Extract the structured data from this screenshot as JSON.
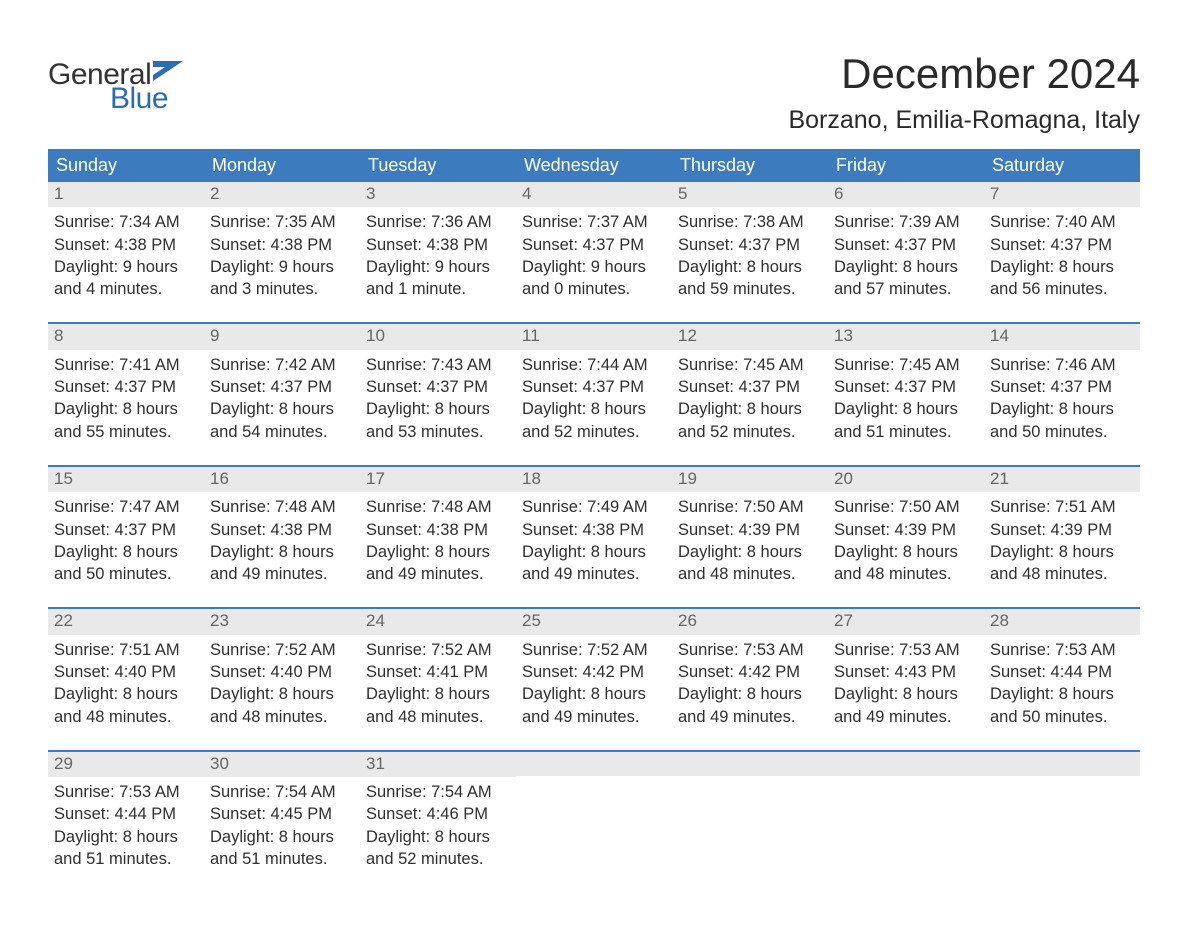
{
  "colors": {
    "header_bg": "#3d7bbf",
    "header_text": "#ffffff",
    "daynum_bg": "#e9e9e9",
    "daynum_text": "#666666",
    "body_text": "#2f2f2f",
    "logo_gray": "#333333",
    "logo_blue": "#2a6db5",
    "page_bg": "#ffffff",
    "week_sep": "#3d7bbf"
  },
  "logo": {
    "part1": "General",
    "part2": "Blue"
  },
  "title": "December 2024",
  "location": "Borzano, Emilia-Romagna, Italy",
  "day_headers": [
    "Sunday",
    "Monday",
    "Tuesday",
    "Wednesday",
    "Thursday",
    "Friday",
    "Saturday"
  ],
  "weeks": [
    [
      {
        "n": "1",
        "sunrise": "Sunrise: 7:34 AM",
        "sunset": "Sunset: 4:38 PM",
        "d1": "Daylight: 9 hours",
        "d2": "and 4 minutes."
      },
      {
        "n": "2",
        "sunrise": "Sunrise: 7:35 AM",
        "sunset": "Sunset: 4:38 PM",
        "d1": "Daylight: 9 hours",
        "d2": "and 3 minutes."
      },
      {
        "n": "3",
        "sunrise": "Sunrise: 7:36 AM",
        "sunset": "Sunset: 4:38 PM",
        "d1": "Daylight: 9 hours",
        "d2": "and 1 minute."
      },
      {
        "n": "4",
        "sunrise": "Sunrise: 7:37 AM",
        "sunset": "Sunset: 4:37 PM",
        "d1": "Daylight: 9 hours",
        "d2": "and 0 minutes."
      },
      {
        "n": "5",
        "sunrise": "Sunrise: 7:38 AM",
        "sunset": "Sunset: 4:37 PM",
        "d1": "Daylight: 8 hours",
        "d2": "and 59 minutes."
      },
      {
        "n": "6",
        "sunrise": "Sunrise: 7:39 AM",
        "sunset": "Sunset: 4:37 PM",
        "d1": "Daylight: 8 hours",
        "d2": "and 57 minutes."
      },
      {
        "n": "7",
        "sunrise": "Sunrise: 7:40 AM",
        "sunset": "Sunset: 4:37 PM",
        "d1": "Daylight: 8 hours",
        "d2": "and 56 minutes."
      }
    ],
    [
      {
        "n": "8",
        "sunrise": "Sunrise: 7:41 AM",
        "sunset": "Sunset: 4:37 PM",
        "d1": "Daylight: 8 hours",
        "d2": "and 55 minutes."
      },
      {
        "n": "9",
        "sunrise": "Sunrise: 7:42 AM",
        "sunset": "Sunset: 4:37 PM",
        "d1": "Daylight: 8 hours",
        "d2": "and 54 minutes."
      },
      {
        "n": "10",
        "sunrise": "Sunrise: 7:43 AM",
        "sunset": "Sunset: 4:37 PM",
        "d1": "Daylight: 8 hours",
        "d2": "and 53 minutes."
      },
      {
        "n": "11",
        "sunrise": "Sunrise: 7:44 AM",
        "sunset": "Sunset: 4:37 PM",
        "d1": "Daylight: 8 hours",
        "d2": "and 52 minutes."
      },
      {
        "n": "12",
        "sunrise": "Sunrise: 7:45 AM",
        "sunset": "Sunset: 4:37 PM",
        "d1": "Daylight: 8 hours",
        "d2": "and 52 minutes."
      },
      {
        "n": "13",
        "sunrise": "Sunrise: 7:45 AM",
        "sunset": "Sunset: 4:37 PM",
        "d1": "Daylight: 8 hours",
        "d2": "and 51 minutes."
      },
      {
        "n": "14",
        "sunrise": "Sunrise: 7:46 AM",
        "sunset": "Sunset: 4:37 PM",
        "d1": "Daylight: 8 hours",
        "d2": "and 50 minutes."
      }
    ],
    [
      {
        "n": "15",
        "sunrise": "Sunrise: 7:47 AM",
        "sunset": "Sunset: 4:37 PM",
        "d1": "Daylight: 8 hours",
        "d2": "and 50 minutes."
      },
      {
        "n": "16",
        "sunrise": "Sunrise: 7:48 AM",
        "sunset": "Sunset: 4:38 PM",
        "d1": "Daylight: 8 hours",
        "d2": "and 49 minutes."
      },
      {
        "n": "17",
        "sunrise": "Sunrise: 7:48 AM",
        "sunset": "Sunset: 4:38 PM",
        "d1": "Daylight: 8 hours",
        "d2": "and 49 minutes."
      },
      {
        "n": "18",
        "sunrise": "Sunrise: 7:49 AM",
        "sunset": "Sunset: 4:38 PM",
        "d1": "Daylight: 8 hours",
        "d2": "and 49 minutes."
      },
      {
        "n": "19",
        "sunrise": "Sunrise: 7:50 AM",
        "sunset": "Sunset: 4:39 PM",
        "d1": "Daylight: 8 hours",
        "d2": "and 48 minutes."
      },
      {
        "n": "20",
        "sunrise": "Sunrise: 7:50 AM",
        "sunset": "Sunset: 4:39 PM",
        "d1": "Daylight: 8 hours",
        "d2": "and 48 minutes."
      },
      {
        "n": "21",
        "sunrise": "Sunrise: 7:51 AM",
        "sunset": "Sunset: 4:39 PM",
        "d1": "Daylight: 8 hours",
        "d2": "and 48 minutes."
      }
    ],
    [
      {
        "n": "22",
        "sunrise": "Sunrise: 7:51 AM",
        "sunset": "Sunset: 4:40 PM",
        "d1": "Daylight: 8 hours",
        "d2": "and 48 minutes."
      },
      {
        "n": "23",
        "sunrise": "Sunrise: 7:52 AM",
        "sunset": "Sunset: 4:40 PM",
        "d1": "Daylight: 8 hours",
        "d2": "and 48 minutes."
      },
      {
        "n": "24",
        "sunrise": "Sunrise: 7:52 AM",
        "sunset": "Sunset: 4:41 PM",
        "d1": "Daylight: 8 hours",
        "d2": "and 48 minutes."
      },
      {
        "n": "25",
        "sunrise": "Sunrise: 7:52 AM",
        "sunset": "Sunset: 4:42 PM",
        "d1": "Daylight: 8 hours",
        "d2": "and 49 minutes."
      },
      {
        "n": "26",
        "sunrise": "Sunrise: 7:53 AM",
        "sunset": "Sunset: 4:42 PM",
        "d1": "Daylight: 8 hours",
        "d2": "and 49 minutes."
      },
      {
        "n": "27",
        "sunrise": "Sunrise: 7:53 AM",
        "sunset": "Sunset: 4:43 PM",
        "d1": "Daylight: 8 hours",
        "d2": "and 49 minutes."
      },
      {
        "n": "28",
        "sunrise": "Sunrise: 7:53 AM",
        "sunset": "Sunset: 4:44 PM",
        "d1": "Daylight: 8 hours",
        "d2": "and 50 minutes."
      }
    ],
    [
      {
        "n": "29",
        "sunrise": "Sunrise: 7:53 AM",
        "sunset": "Sunset: 4:44 PM",
        "d1": "Daylight: 8 hours",
        "d2": "and 51 minutes."
      },
      {
        "n": "30",
        "sunrise": "Sunrise: 7:54 AM",
        "sunset": "Sunset: 4:45 PM",
        "d1": "Daylight: 8 hours",
        "d2": "and 51 minutes."
      },
      {
        "n": "31",
        "sunrise": "Sunrise: 7:54 AM",
        "sunset": "Sunset: 4:46 PM",
        "d1": "Daylight: 8 hours",
        "d2": "and 52 minutes."
      },
      {
        "empty": true
      },
      {
        "empty": true
      },
      {
        "empty": true
      },
      {
        "empty": true
      }
    ]
  ]
}
